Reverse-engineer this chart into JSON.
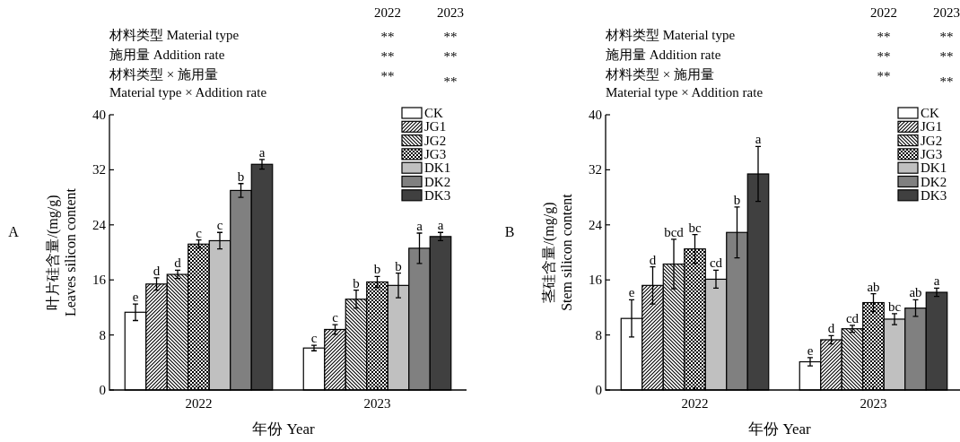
{
  "chart_data": [
    {
      "type": "bar",
      "title": "A",
      "xlabel": "年份 Year",
      "ylabel": "叶片硅含量/(mg/g)\nLeaves silicon content",
      "annotations": [
        "2022",
        "2023",
        "材料类型 Material type",
        "**",
        "**",
        "施用量 Addition rate",
        "**",
        "**",
        "材料类型 × 施用量\nMaterial type × Addition rate",
        "**",
        "**"
      ],
      "categories": [
        "2022",
        "2023"
      ],
      "ylim": [
        0,
        40
      ],
      "yticks": [
        0,
        8,
        16,
        24,
        32,
        40
      ],
      "legend": "top right",
      "grid": false,
      "series": [
        {
          "name": "CK",
          "color": "#ffffff",
          "values": [
            11.3,
            6.1
          ],
          "errors": [
            1.2,
            0.4
          ],
          "value_labels": [
            "e",
            "c"
          ]
        },
        {
          "name": "JG1",
          "color": "#000000",
          "values": [
            15.4,
            8.8
          ],
          "errors": [
            0.9,
            0.7
          ],
          "value_labels": [
            "d",
            "c"
          ]
        },
        {
          "name": "JG2",
          "color": "#000000",
          "values": [
            16.8,
            13.2
          ],
          "errors": [
            0.6,
            1.3
          ],
          "value_labels": [
            "d",
            "b"
          ]
        },
        {
          "name": "JG3",
          "color": "#000000",
          "values": [
            21.2,
            15.7
          ],
          "errors": [
            0.6,
            0.8
          ],
          "value_labels": [
            "c",
            "b"
          ]
        },
        {
          "name": "DK1",
          "color": "#c0c0c0",
          "values": [
            21.7,
            15.2
          ],
          "errors": [
            1.2,
            1.8
          ],
          "value_labels": [
            "c",
            "b"
          ]
        },
        {
          "name": "DK2",
          "color": "#808080",
          "values": [
            29.0,
            20.6
          ],
          "errors": [
            1.0,
            2.2
          ],
          "value_labels": [
            "b",
            "a"
          ]
        },
        {
          "name": "DK3",
          "color": "#404040",
          "values": [
            32.8,
            22.3
          ],
          "errors": [
            0.7,
            0.6
          ],
          "value_labels": [
            "a",
            "a"
          ]
        }
      ]
    },
    {
      "type": "bar",
      "title": "B",
      "xlabel": "年份 Year",
      "ylabel": "茎硅含量/(mg/g)\nStem silicon content",
      "annotations": [
        "2022",
        "2023",
        "材料类型 Material type",
        "**",
        "**",
        "施用量 Addition rate",
        "**",
        "**",
        "材料类型 × 施用量\nMaterial type × Addition rate",
        "**",
        "**"
      ],
      "categories": [
        "2022",
        "2023"
      ],
      "ylim": [
        0,
        40
      ],
      "yticks": [
        0,
        8,
        16,
        24,
        32,
        40
      ],
      "legend": "top right",
      "grid": false,
      "series": [
        {
          "name": "CK",
          "color": "#ffffff",
          "values": [
            10.4,
            4.1
          ],
          "errors": [
            2.7,
            0.6
          ],
          "value_labels": [
            "e",
            "e"
          ]
        },
        {
          "name": "JG1",
          "color": "#000000",
          "values": [
            15.2,
            7.3
          ],
          "errors": [
            2.7,
            0.6
          ],
          "value_labels": [
            "d",
            "d"
          ]
        },
        {
          "name": "JG2",
          "color": "#000000",
          "values": [
            18.3,
            8.9
          ],
          "errors": [
            3.6,
            0.5
          ],
          "value_labels": [
            "bcd",
            "cd"
          ]
        },
        {
          "name": "JG3",
          "color": "#000000",
          "values": [
            20.5,
            12.7
          ],
          "errors": [
            2.1,
            1.3
          ],
          "value_labels": [
            "bc",
            "ab"
          ]
        },
        {
          "name": "DK1",
          "color": "#c0c0c0",
          "values": [
            16.1,
            10.3
          ],
          "errors": [
            1.3,
            0.8
          ],
          "value_labels": [
            "cd",
            "bc"
          ]
        },
        {
          "name": "DK2",
          "color": "#808080",
          "values": [
            22.9,
            11.9
          ],
          "errors": [
            3.7,
            1.2
          ],
          "value_labels": [
            "b",
            "ab"
          ]
        },
        {
          "name": "DK3",
          "color": "#404040",
          "values": [
            31.4,
            14.2
          ],
          "errors": [
            4.0,
            0.6
          ],
          "value_labels": [
            "a",
            "a"
          ]
        }
      ]
    }
  ]
}
